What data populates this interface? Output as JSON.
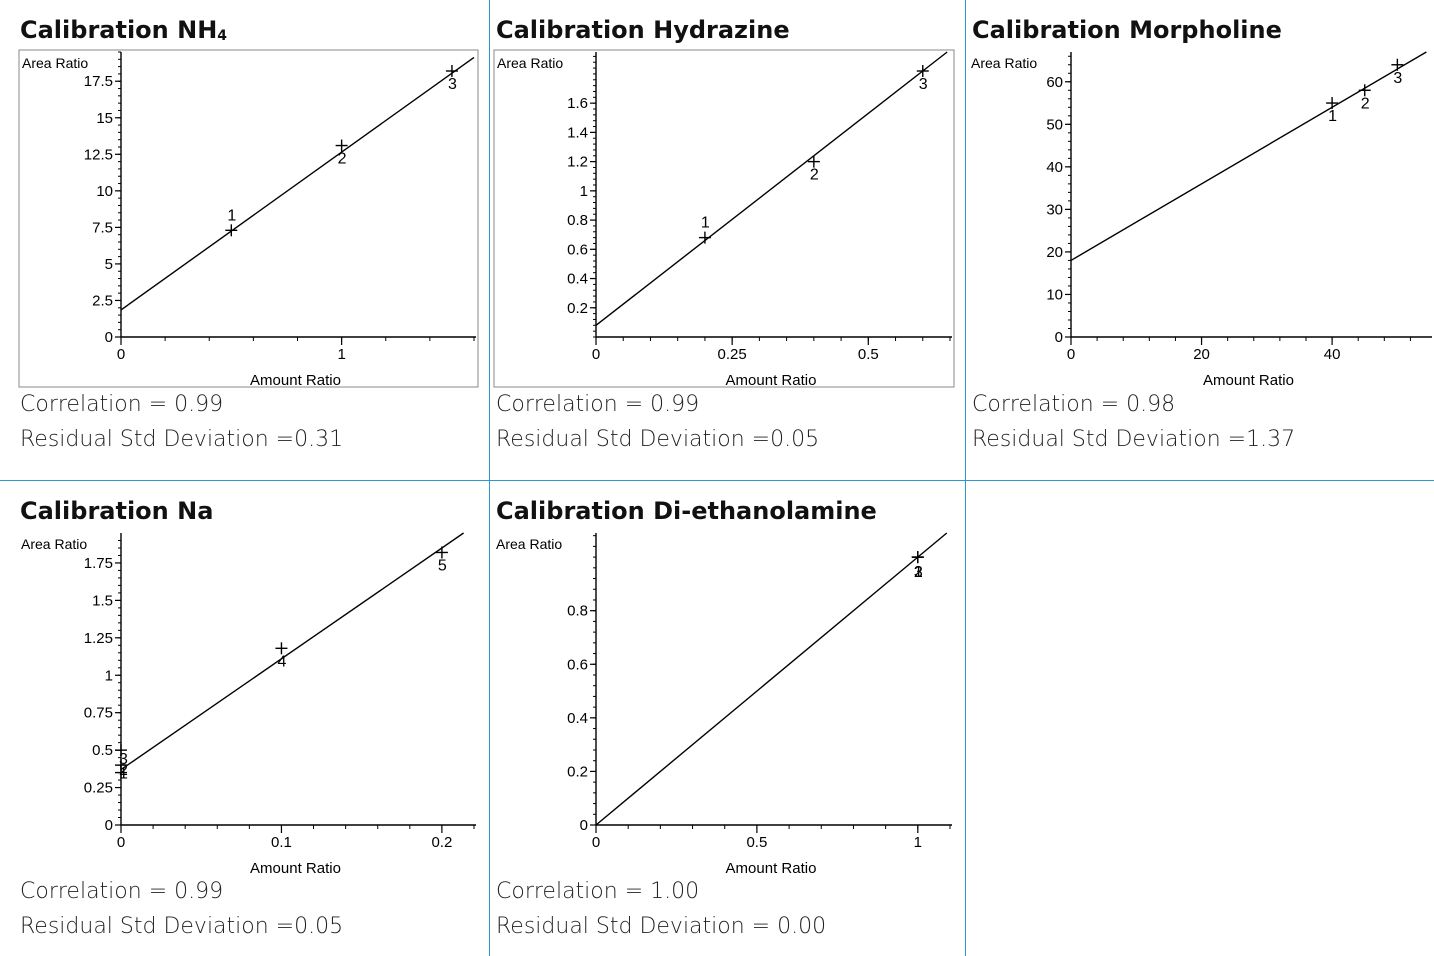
{
  "chart_data": [
    {
      "type": "scatter",
      "title_main": "Calibration NH",
      "title_sub": "4",
      "xlabel": "Amount Ratio",
      "ylabel": "Area Ratio",
      "xlim": [
        0,
        1.6
      ],
      "ylim": [
        0,
        19.5
      ],
      "xticks": [
        0,
        1
      ],
      "yticks": [
        0,
        2.5,
        5,
        7.5,
        10,
        12.5,
        15,
        17.5
      ],
      "ytick_labels": [
        "0",
        "2.5",
        "5",
        "7.5",
        "10",
        "12.5",
        "15",
        "17.5"
      ],
      "xtick_labels": [
        "0",
        "1"
      ],
      "points": [
        {
          "label": "1",
          "x": 0.5,
          "y": 7.3
        },
        {
          "label": "2",
          "x": 1.0,
          "y": 13.1
        },
        {
          "label": "3",
          "x": 1.5,
          "y": 18.2
        }
      ],
      "fit": {
        "intercept": 1.85,
        "slope": 10.8
      },
      "correlation": "Correlation = 0.99",
      "residual": "Residual Std Deviation =0.31"
    },
    {
      "type": "scatter",
      "title_main": "Calibration Hydrazine",
      "title_sub": "",
      "xlabel": "Amount Ratio",
      "ylabel": "Area Ratio",
      "xlim": [
        0,
        0.65
      ],
      "ylim": [
        0,
        1.95
      ],
      "xticks": [
        0,
        0.25,
        0.5
      ],
      "xtick_labels": [
        "0",
        "0.25",
        "0.5"
      ],
      "yticks": [
        0.2,
        0.4,
        0.6,
        0.8,
        1,
        1.2,
        1.4,
        1.6
      ],
      "ytick_labels": [
        "0.2",
        "0.4",
        "0.6",
        "0.8",
        "1",
        "1.2",
        "1.4",
        "1.6"
      ],
      "points": [
        {
          "label": "1",
          "x": 0.2,
          "y": 0.68
        },
        {
          "label": "2",
          "x": 0.4,
          "y": 1.2
        },
        {
          "label": "3",
          "x": 0.6,
          "y": 1.82
        }
      ],
      "fit": {
        "intercept": 0.08,
        "slope": 2.9
      },
      "correlation": "Correlation = 0.99",
      "residual": "Residual Std Deviation =0.05"
    },
    {
      "type": "scatter",
      "title_main": "Calibration Morpholine",
      "title_sub": "",
      "xlabel": "Amount Ratio",
      "ylabel": "Area Ratio",
      "xlim": [
        0,
        55
      ],
      "ylim": [
        0,
        67
      ],
      "xticks": [
        0,
        20,
        40
      ],
      "xtick_labels": [
        "0",
        "20",
        "40"
      ],
      "yticks": [
        0,
        10,
        20,
        30,
        40,
        50,
        60
      ],
      "ytick_labels": [
        "0",
        "10",
        "20",
        "30",
        "40",
        "50",
        "60"
      ],
      "points": [
        {
          "label": "1",
          "x": 40,
          "y": 55
        },
        {
          "label": "2",
          "x": 45,
          "y": 58
        },
        {
          "label": "3",
          "x": 50,
          "y": 64
        }
      ],
      "fit": {
        "intercept": 18,
        "slope": 0.9
      },
      "correlation": "Correlation = 0.98",
      "residual": "Residual Std Deviation =1.37"
    },
    {
      "type": "scatter",
      "title_main": "Calibration Na",
      "title_sub": "",
      "xlabel": "Amount Ratio",
      "ylabel": "Area Ratio",
      "xlim": [
        0,
        0.22
      ],
      "ylim": [
        0,
        1.95
      ],
      "xticks": [
        0,
        0.1,
        0.2
      ],
      "xtick_labels": [
        "0",
        "0.1",
        "0.2"
      ],
      "yticks": [
        0,
        0.25,
        0.5,
        0.75,
        1,
        1.25,
        1.5,
        1.75
      ],
      "ytick_labels": [
        "0",
        "0.25",
        "0.5",
        "0.75",
        "1",
        "1.25",
        "1.5",
        "1.75"
      ],
      "points": [
        {
          "label": "1",
          "x": 0.0,
          "y": 0.35
        },
        {
          "label": "2",
          "x": 0.0,
          "y": 0.4
        },
        {
          "label": "3",
          "x": 0.0,
          "y": 0.5
        },
        {
          "label": "4",
          "x": 0.1,
          "y": 1.18
        },
        {
          "label": "5",
          "x": 0.2,
          "y": 1.82
        }
      ],
      "fit": {
        "intercept": 0.37,
        "slope": 7.4
      },
      "correlation": "Correlation = 0.99",
      "residual": "Residual Std Deviation =0.05"
    },
    {
      "type": "scatter",
      "title_main": "Calibration Di-ethanolamine",
      "title_sub": "",
      "xlabel": "Amount Ratio",
      "ylabel": "Area Ratio",
      "xlim": [
        0,
        1.1
      ],
      "ylim": [
        0,
        1.09
      ],
      "xticks": [
        0,
        0.5,
        1
      ],
      "xtick_labels": [
        "0",
        "0.5",
        "1"
      ],
      "yticks": [
        0,
        0.2,
        0.4,
        0.6,
        0.8
      ],
      "ytick_labels": [
        "0",
        "0.2",
        "0.4",
        "0.6",
        "0.8"
      ],
      "points": [
        {
          "label": "1",
          "x": 1.0,
          "y": 1.0
        },
        {
          "label": "2",
          "x": 1.0,
          "y": 1.0
        },
        {
          "label": "3",
          "x": 1.0,
          "y": 1.0
        }
      ],
      "fit": {
        "intercept": 0,
        "slope": 1
      },
      "correlation": "Correlation = 1.00",
      "residual": "Residual Std Deviation = 0.00"
    }
  ]
}
